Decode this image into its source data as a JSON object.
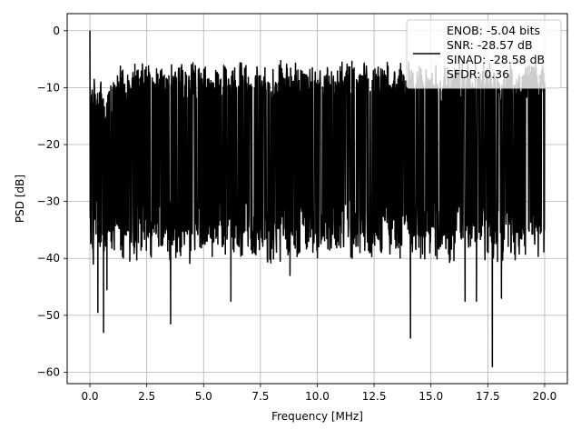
{
  "chart_data": {
    "type": "line",
    "title": "",
    "xlabel": "Frequency [MHz]",
    "ylabel": "PSD [dB]",
    "xlim": [
      -1.0,
      21.0
    ],
    "ylim": [
      -62.0,
      3.0
    ],
    "xticks": [
      0.0,
      2.5,
      5.0,
      7.5,
      10.0,
      12.5,
      15.0,
      17.5,
      20.0
    ],
    "xtick_labels": [
      "0.0",
      "2.5",
      "5.0",
      "7.5",
      "10.0",
      "12.5",
      "15.0",
      "17.5",
      "20.0"
    ],
    "yticks": [
      0,
      -10,
      -20,
      -30,
      -40,
      -50,
      -60
    ],
    "ytick_labels": [
      "0",
      "−10",
      "−20",
      "−30",
      "−40",
      "−50",
      "−60"
    ],
    "grid": true,
    "legend_position": "top-right",
    "series": [
      {
        "color": "#000000",
        "description": "dense noise-like PSD spanning 0–20 MHz; envelope peaks near -5 dB, troughs down to about -59 dB; initial spike at 0 dB at 0 MHz",
        "peak_at_zero_db": 0.0,
        "floor_upper_db": -5.0,
        "floor_lower_db": -35.0,
        "deep_nulls": [
          {
            "x": 0.15,
            "y": -41
          },
          {
            "x": 0.35,
            "y": -49.5
          },
          {
            "x": 0.6,
            "y": -53
          },
          {
            "x": 0.75,
            "y": -45.5
          },
          {
            "x": 3.55,
            "y": -51.5
          },
          {
            "x": 6.2,
            "y": -47.5
          },
          {
            "x": 8.8,
            "y": -43
          },
          {
            "x": 14.1,
            "y": -54
          },
          {
            "x": 16.5,
            "y": -47.5
          },
          {
            "x": 17.0,
            "y": -47.5
          },
          {
            "x": 17.7,
            "y": -59
          },
          {
            "x": 18.1,
            "y": -47
          }
        ]
      }
    ],
    "legend_entries": [
      "ENOB: -5.04 bits",
      "SNR: -28.57 dB",
      "SINAD: -28.58 dB",
      "SFDR: 0.36"
    ]
  }
}
